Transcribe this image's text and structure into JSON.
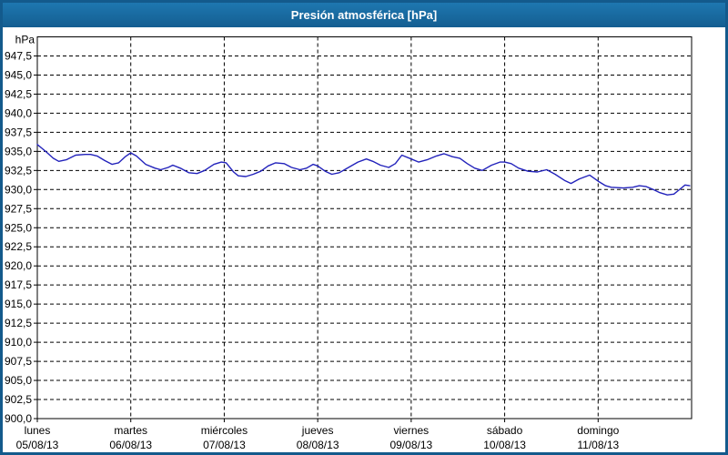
{
  "window": {
    "title": "Presión atmosférica [hPa]"
  },
  "colors": {
    "frame": "#135a8c",
    "titlebar_top": "#1e77b0",
    "titlebar_bottom": "#145e91",
    "title_text": "#ffffff",
    "plot_bg": "#ffffff",
    "grid": "#000000",
    "axis": "#000000",
    "line": "#2222bb",
    "label": "#000000"
  },
  "y_axis": {
    "unit": "hPa",
    "min": 900,
    "max": 950,
    "step": 2.5,
    "tick_labels": [
      "947,5",
      "945,0",
      "942,5",
      "940,0",
      "937,5",
      "935,0",
      "932,5",
      "930,0",
      "927,5",
      "925,0",
      "922,5",
      "920,0",
      "917,5",
      "915,0",
      "912,5",
      "910,0",
      "907,5",
      "905,0",
      "902,5",
      "900,0"
    ]
  },
  "x_axis": {
    "days": [
      {
        "name": "lunes",
        "date": "05/08/13"
      },
      {
        "name": "martes",
        "date": "06/08/13"
      },
      {
        "name": "miércoles",
        "date": "07/08/13"
      },
      {
        "name": "jueves",
        "date": "08/08/13"
      },
      {
        "name": "viernes",
        "date": "09/08/13"
      },
      {
        "name": "sábado",
        "date": "10/08/13"
      },
      {
        "name": "domingo",
        "date": "11/08/13"
      }
    ]
  },
  "chart_data": {
    "type": "line",
    "title": "Presión atmosférica [hPa]",
    "ylabel": "hPa",
    "ylim": [
      900,
      950
    ],
    "xlim_days": [
      0,
      7
    ],
    "grid": "dashed",
    "legend_position": "none",
    "series": [
      {
        "name": "Presión atmosférica",
        "color": "#2222bb",
        "points_day_hpa": [
          [
            0.0,
            935.9
          ],
          [
            0.05,
            935.4
          ],
          [
            0.09,
            935.0
          ],
          [
            0.17,
            934.1
          ],
          [
            0.23,
            933.7
          ],
          [
            0.31,
            933.9
          ],
          [
            0.41,
            934.5
          ],
          [
            0.51,
            934.6
          ],
          [
            0.57,
            934.6
          ],
          [
            0.64,
            934.4
          ],
          [
            0.72,
            933.8
          ],
          [
            0.8,
            933.3
          ],
          [
            0.87,
            933.5
          ],
          [
            0.94,
            934.3
          ],
          [
            1.0,
            934.8
          ],
          [
            1.06,
            934.4
          ],
          [
            1.16,
            933.3
          ],
          [
            1.26,
            932.8
          ],
          [
            1.32,
            932.6
          ],
          [
            1.4,
            932.9
          ],
          [
            1.45,
            933.2
          ],
          [
            1.53,
            932.8
          ],
          [
            1.62,
            932.2
          ],
          [
            1.71,
            932.1
          ],
          [
            1.79,
            932.5
          ],
          [
            1.89,
            933.3
          ],
          [
            1.97,
            933.6
          ],
          [
            2.02,
            933.5
          ],
          [
            2.1,
            932.3
          ],
          [
            2.15,
            931.8
          ],
          [
            2.23,
            931.7
          ],
          [
            2.31,
            932.0
          ],
          [
            2.39,
            932.4
          ],
          [
            2.47,
            933.1
          ],
          [
            2.55,
            933.5
          ],
          [
            2.64,
            933.4
          ],
          [
            2.72,
            932.9
          ],
          [
            2.81,
            932.6
          ],
          [
            2.88,
            932.8
          ],
          [
            2.95,
            933.3
          ],
          [
            3.0,
            933.1
          ],
          [
            3.08,
            932.4
          ],
          [
            3.15,
            932.0
          ],
          [
            3.23,
            932.2
          ],
          [
            3.33,
            932.9
          ],
          [
            3.43,
            933.6
          ],
          [
            3.52,
            934.0
          ],
          [
            3.59,
            933.7
          ],
          [
            3.67,
            933.2
          ],
          [
            3.76,
            932.9
          ],
          [
            3.83,
            933.4
          ],
          [
            3.9,
            934.5
          ],
          [
            4.0,
            934.0
          ],
          [
            4.08,
            933.6
          ],
          [
            4.17,
            933.9
          ],
          [
            4.27,
            934.4
          ],
          [
            4.35,
            934.7
          ],
          [
            4.44,
            934.3
          ],
          [
            4.52,
            934.1
          ],
          [
            4.6,
            933.4
          ],
          [
            4.68,
            932.8
          ],
          [
            4.76,
            932.5
          ],
          [
            4.86,
            933.2
          ],
          [
            4.95,
            933.6
          ],
          [
            5.0,
            933.6
          ],
          [
            5.07,
            933.4
          ],
          [
            5.15,
            932.8
          ],
          [
            5.25,
            932.4
          ],
          [
            5.35,
            932.3
          ],
          [
            5.45,
            932.6
          ],
          [
            5.54,
            932.0
          ],
          [
            5.64,
            931.2
          ],
          [
            5.71,
            930.8
          ],
          [
            5.8,
            931.4
          ],
          [
            5.91,
            931.9
          ],
          [
            6.0,
            931.1
          ],
          [
            6.08,
            930.5
          ],
          [
            6.14,
            930.3
          ],
          [
            6.27,
            930.2
          ],
          [
            6.37,
            930.3
          ],
          [
            6.44,
            930.5
          ],
          [
            6.51,
            930.4
          ],
          [
            6.59,
            930.0
          ],
          [
            6.66,
            929.6
          ],
          [
            6.74,
            929.3
          ],
          [
            6.81,
            929.4
          ],
          [
            6.88,
            930.1
          ],
          [
            6.93,
            930.6
          ],
          [
            6.98,
            930.5
          ]
        ]
      }
    ]
  }
}
